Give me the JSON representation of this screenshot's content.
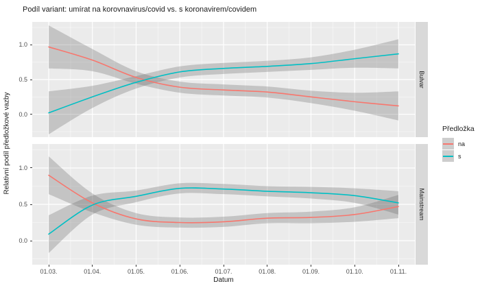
{
  "title": "Podíl variant: umírat na korovnavirus/covid vs. s koronavirem/covidem",
  "legend": {
    "title": "Předložka",
    "items": [
      {
        "label": "na",
        "color": "#F8766D"
      },
      {
        "label": "s",
        "color": "#00BFC4"
      }
    ]
  },
  "colors": {
    "panel_background": "#EBEBEB",
    "strip_background": "#D9D9D9",
    "grid": "#FFFFFF",
    "ribbon": "rgba(97,97,97,0.28)",
    "series_na": "#F8766D",
    "series_s": "#00BFC4",
    "axis_text": "#4d4d4d"
  },
  "chart_data": {
    "type": "line",
    "title": "Podíl variant: umírat na korovnavirus/covid vs. s koronavirem/covidem",
    "xlabel": "Datum",
    "ylabel": "Relativní podíl předložkové vazby",
    "legend_title": "Předložka",
    "legend_position": "right",
    "grid": true,
    "smoothed": true,
    "confidence_bands": true,
    "ylim": [
      -0.33,
      1.33
    ],
    "x_ticks": [
      "01.03.",
      "01.04.",
      "01.05.",
      "01.06.",
      "01.07.",
      "01.08.",
      "01.09.",
      "01.10.",
      "01.11."
    ],
    "y_ticks": [
      {
        "label": "1.0",
        "value": 1.0
      },
      {
        "label": "0.5",
        "value": 0.5
      },
      {
        "label": "0.0",
        "value": 0.0
      }
    ],
    "y_grid_major": [
      0,
      0.5,
      1
    ],
    "y_grid_minor": [
      -0.25,
      0.25,
      0.75,
      1.25
    ],
    "facets": [
      {
        "name": "Bulvar",
        "series": [
          {
            "name": "na",
            "color": "#F8766D",
            "values": [
              0.97,
              0.78,
              0.53,
              0.39,
              0.35,
              0.32,
              0.25,
              0.18,
              0.12
            ],
            "ci": [
              0.31,
              0.16,
              0.09,
              0.08,
              0.08,
              0.08,
              0.09,
              0.13,
              0.21
            ]
          },
          {
            "name": "s",
            "color": "#00BFC4",
            "values": [
              0.02,
              0.25,
              0.46,
              0.61,
              0.66,
              0.69,
              0.73,
              0.8,
              0.87
            ],
            "ci": [
              0.31,
              0.16,
              0.09,
              0.08,
              0.08,
              0.08,
              0.09,
              0.13,
              0.21
            ]
          }
        ]
      },
      {
        "name": "Mainstream",
        "series": [
          {
            "name": "na",
            "color": "#F8766D",
            "values": [
              0.9,
              0.52,
              0.3,
              0.25,
              0.26,
              0.31,
              0.32,
              0.36,
              0.47
            ],
            "ci": [
              0.26,
              0.13,
              0.08,
              0.07,
              0.07,
              0.07,
              0.08,
              0.1,
              0.16
            ]
          },
          {
            "name": "s",
            "color": "#00BFC4",
            "values": [
              0.09,
              0.49,
              0.61,
              0.72,
              0.71,
              0.68,
              0.66,
              0.62,
              0.52
            ],
            "ci": [
              0.26,
              0.13,
              0.08,
              0.07,
              0.07,
              0.07,
              0.08,
              0.1,
              0.16
            ]
          }
        ]
      }
    ]
  }
}
